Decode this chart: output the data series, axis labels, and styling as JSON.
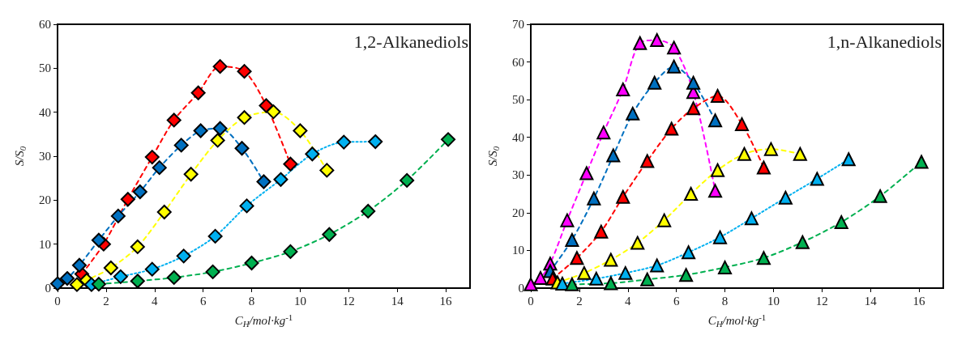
{
  "chart_data": [
    {
      "type": "line",
      "xlabel": "C$_{H}$/mol·kg$^{-1}$",
      "ylabel": "S/S$_{0}$",
      "annotations": [
        "1,2-Alkanediols"
      ],
      "xlim": [
        0,
        17
      ],
      "xticks": [
        0,
        2,
        4,
        6,
        8,
        10,
        12,
        14,
        16
      ],
      "ylim": [
        0,
        60
      ],
      "yticks": [
        0,
        10,
        20,
        30,
        40,
        50,
        60
      ],
      "marker": "diamond",
      "series": [
        {
          "color": "#ff0000",
          "line_style": "dashed",
          "x": [
            1.0,
            1.9,
            2.9,
            3.9,
            4.8,
            5.8,
            6.7,
            7.7,
            8.6,
            9.6
          ],
          "values": [
            3.2,
            10,
            20.2,
            29.8,
            38.2,
            44.4,
            50.4,
            49.3,
            41.5,
            28.2
          ]
        },
        {
          "color": "#ffff00",
          "line_style": "dashed",
          "x": [
            0.8,
            1.2,
            2.2,
            3.3,
            4.4,
            5.5,
            6.6,
            7.7,
            8.9,
            10.0,
            11.1
          ],
          "values": [
            0.8,
            1.8,
            4.6,
            9.4,
            17.3,
            25.9,
            33.6,
            38.8,
            40.1,
            35.8,
            26.8
          ]
        },
        {
          "color": "#0070c0",
          "line_style": "dashed",
          "x": [
            0,
            0.4,
            0.9,
            1.7,
            2.5,
            3.4,
            4.2,
            5.1,
            5.9,
            6.7,
            7.6,
            8.5
          ],
          "values": [
            1,
            2.2,
            5.2,
            10.9,
            16.4,
            21.9,
            27.4,
            32.5,
            35.8,
            36.3,
            31.8,
            24.2
          ]
        },
        {
          "color": "#00b0f0",
          "line_style": "dotted",
          "x": [
            1.4,
            2.6,
            3.9,
            5.2,
            6.5,
            7.8,
            9.2,
            10.5,
            11.8,
            13.1
          ],
          "values": [
            0.8,
            2.6,
            4.3,
            7.3,
            11.8,
            18.7,
            24.7,
            30.5,
            33.2,
            33.3
          ]
        },
        {
          "color": "#00b050",
          "line_style": "dashed",
          "x": [
            1.7,
            3.3,
            4.8,
            6.4,
            8.0,
            9.6,
            11.2,
            12.8,
            14.4,
            16.1
          ],
          "values": [
            0.9,
            1.6,
            2.4,
            3.7,
            5.7,
            8.3,
            12.2,
            17.5,
            24.5,
            33.8
          ]
        }
      ]
    },
    {
      "type": "line",
      "xlabel": "C$_{H}$/mol·kg$^{-1}$",
      "ylabel": "S/S$_{0}$",
      "annotations": [
        "1,n-Alkanediols"
      ],
      "xlim": [
        0,
        17
      ],
      "xticks": [
        0,
        2,
        4,
        6,
        8,
        10,
        12,
        14,
        16
      ],
      "ylim": [
        0,
        70
      ],
      "yticks": [
        0,
        10,
        20,
        30,
        40,
        50,
        60,
        70
      ],
      "marker": "triangle",
      "series": [
        {
          "color": "#ff00ff",
          "line_style": "dashed",
          "x": [
            0,
            0.4,
            0.8,
            1.5,
            2.3,
            3.0,
            3.8,
            4.5,
            5.2,
            5.9,
            6.7,
            7.6
          ],
          "values": [
            1,
            2.7,
            6.5,
            18,
            30.5,
            41.3,
            52.7,
            65,
            65.8,
            63.8,
            52,
            25.8
          ]
        },
        {
          "color": "#0070c0",
          "line_style": "dashed",
          "x": [
            0.8,
            1.7,
            2.6,
            3.4,
            4.2,
            5.1,
            5.9,
            6.7,
            7.6
          ],
          "values": [
            4.5,
            12.8,
            23.8,
            35.2,
            46.3,
            54.5,
            58.8,
            54.5,
            44.5
          ]
        },
        {
          "color": "#ff0000",
          "line_style": "dashed",
          "x": [
            0.9,
            1.9,
            2.9,
            3.8,
            4.8,
            5.8,
            6.7,
            7.7,
            8.7,
            9.6
          ],
          "values": [
            2.5,
            8,
            15,
            24.2,
            33.7,
            42.3,
            47.7,
            51,
            43.5,
            32
          ]
        },
        {
          "color": "#ffff00",
          "line_style": "dashed",
          "x": [
            1.1,
            2.2,
            3.3,
            4.4,
            5.5,
            6.6,
            7.7,
            8.8,
            9.9,
            11.1
          ],
          "values": [
            1.5,
            4,
            7.5,
            12,
            18,
            25,
            31.3,
            35.6,
            36.9,
            35.6
          ]
        },
        {
          "color": "#00b0f0",
          "line_style": "dotted",
          "x": [
            1.3,
            2.7,
            3.9,
            5.2,
            6.5,
            7.8,
            9.1,
            10.5,
            11.8,
            13.1
          ],
          "values": [
            1.2,
            2.5,
            4,
            6,
            9.5,
            13.5,
            18.5,
            24,
            29,
            34.2
          ]
        },
        {
          "color": "#00b050",
          "line_style": "dashed",
          "x": [
            1.7,
            3.3,
            4.8,
            6.4,
            8.0,
            9.6,
            11.2,
            12.8,
            14.4,
            16.1
          ],
          "values": [
            1,
            1.3,
            2.3,
            3.5,
            5.5,
            8,
            12.2,
            17.5,
            24.4,
            33.5
          ]
        }
      ]
    }
  ]
}
